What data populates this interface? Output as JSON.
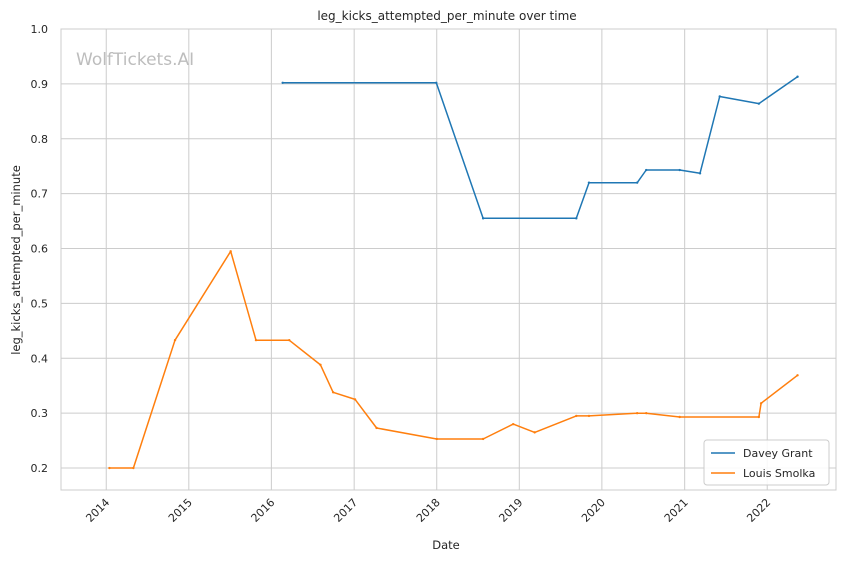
{
  "chart_data": {
    "type": "line",
    "title": "leg_kicks_attempted_per_minute over time",
    "xlabel": "Date",
    "ylabel": "leg_kicks_attempted_per_minute",
    "watermark": "WolfTickets.AI",
    "xlim": [
      "2013-06-15",
      "2022-11-01"
    ],
    "ylim": [
      0.16,
      1.0
    ],
    "x_ticks": [
      "2014",
      "2015",
      "2016",
      "2017",
      "2018",
      "2019",
      "2020",
      "2021",
      "2022"
    ],
    "y_ticks": [
      "0.2",
      "0.3",
      "0.4",
      "0.5",
      "0.6",
      "0.7",
      "0.8",
      "0.9",
      "1.0"
    ],
    "grid": true,
    "legend_position": "lower-right",
    "series": [
      {
        "name": "Davey Grant",
        "color": "#1f77b4",
        "points": [
          [
            "2016-02-20",
            0.902
          ],
          [
            "2017-12-30",
            0.902
          ],
          [
            "2018-07-25",
            0.655
          ],
          [
            "2019-09-10",
            0.655
          ],
          [
            "2019-11-05",
            0.72
          ],
          [
            "2020-06-05",
            0.72
          ],
          [
            "2020-07-15",
            0.743
          ],
          [
            "2020-12-10",
            0.743
          ],
          [
            "2021-03-10",
            0.737
          ],
          [
            "2021-06-05",
            0.877
          ],
          [
            "2021-11-25",
            0.864
          ],
          [
            "2022-05-15",
            0.913
          ]
        ]
      },
      {
        "name": "Louis Smolka",
        "color": "#ff7f0e",
        "points": [
          [
            "2014-01-15",
            0.2
          ],
          [
            "2014-05-01",
            0.2
          ],
          [
            "2014-11-01",
            0.433
          ],
          [
            "2015-07-05",
            0.595
          ],
          [
            "2015-10-25",
            0.433
          ],
          [
            "2016-03-20",
            0.433
          ],
          [
            "2016-08-05",
            0.388
          ],
          [
            "2016-09-30",
            0.338
          ],
          [
            "2017-01-05",
            0.325
          ],
          [
            "2017-04-10",
            0.273
          ],
          [
            "2018-01-01",
            0.253
          ],
          [
            "2018-07-25",
            0.253
          ],
          [
            "2018-12-05",
            0.28
          ],
          [
            "2019-03-10",
            0.265
          ],
          [
            "2019-09-10",
            0.295
          ],
          [
            "2019-11-05",
            0.295
          ],
          [
            "2020-06-05",
            0.3
          ],
          [
            "2020-07-15",
            0.3
          ],
          [
            "2020-12-10",
            0.293
          ],
          [
            "2021-11-25",
            0.293
          ],
          [
            "2021-12-05",
            0.318
          ],
          [
            "2022-05-15",
            0.369
          ]
        ]
      }
    ]
  }
}
